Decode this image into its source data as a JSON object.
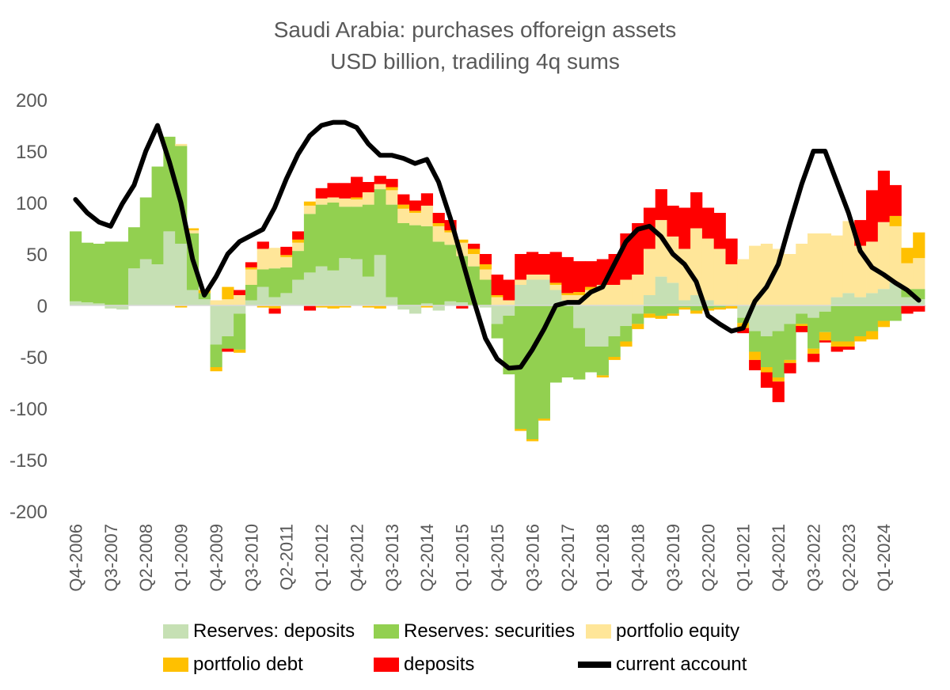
{
  "chart_data": {
    "type": "bar",
    "title": "Saudi Arabia: purchases offoreign assets",
    "subtitle": "USD billion, tradiling 4q sums",
    "ylim": [
      -200,
      200
    ],
    "yticks": [
      200,
      150,
      100,
      50,
      0,
      -50,
      -100,
      -150,
      -200
    ],
    "x_tick_labels": [
      "Q4-2006",
      "Q3-2007",
      "Q2-2008",
      "Q1-2009",
      "Q4-2009",
      "Q3-2010",
      "Q2-2011",
      "Q1-2012",
      "Q4-2012",
      "Q3-2013",
      "Q2-2014",
      "Q1-2015",
      "Q4-2015",
      "Q3-2016",
      "Q2-2017",
      "Q1-2018",
      "Q4-2018",
      "Q3-2019",
      "Q2-2020",
      "Q1-2021",
      "Q4-2021",
      "Q3-2022",
      "Q2-2023",
      "Q1-2024"
    ],
    "quarters": [
      "Q4-2006",
      "Q1-2007",
      "Q2-2007",
      "Q3-2007",
      "Q4-2007",
      "Q1-2008",
      "Q2-2008",
      "Q3-2008",
      "Q4-2008",
      "Q1-2009",
      "Q2-2009",
      "Q3-2009",
      "Q4-2009",
      "Q1-2010",
      "Q2-2010",
      "Q3-2010",
      "Q4-2010",
      "Q1-2011",
      "Q2-2011",
      "Q3-2011",
      "Q4-2011",
      "Q1-2012",
      "Q2-2012",
      "Q3-2012",
      "Q4-2012",
      "Q1-2013",
      "Q2-2013",
      "Q3-2013",
      "Q4-2013",
      "Q1-2014",
      "Q2-2014",
      "Q3-2014",
      "Q4-2014",
      "Q1-2015",
      "Q2-2015",
      "Q3-2015",
      "Q4-2015",
      "Q1-2016",
      "Q2-2016",
      "Q3-2016",
      "Q4-2016",
      "Q1-2017",
      "Q2-2017",
      "Q3-2017",
      "Q4-2017",
      "Q1-2018",
      "Q2-2018",
      "Q3-2018",
      "Q4-2018",
      "Q1-2019",
      "Q2-2019",
      "Q3-2019",
      "Q4-2019",
      "Q1-2020",
      "Q2-2020",
      "Q3-2020",
      "Q4-2020",
      "Q1-2021",
      "Q2-2021",
      "Q3-2021",
      "Q4-2021",
      "Q1-2022",
      "Q2-2022",
      "Q3-2022",
      "Q4-2022",
      "Q1-2023",
      "Q2-2023",
      "Q3-2023",
      "Q4-2023",
      "Q1-2024",
      "Q2-2024",
      "Q3-2024",
      "Q4-2024"
    ],
    "series": [
      {
        "name": "Reserves: deposits",
        "color": "#c6e0b4",
        "kind": "bar",
        "values": [
          4,
          3,
          2,
          -3,
          -4,
          36,
          45,
          40,
          72,
          60,
          15,
          6,
          -38,
          -30,
          -8,
          5,
          18,
          8,
          12,
          25,
          32,
          38,
          34,
          46,
          45,
          28,
          49,
          8,
          -4,
          -8,
          2,
          -5,
          4,
          3,
          0,
          -2,
          -18,
          -10,
          20,
          25,
          25,
          15,
          5,
          -22,
          -40,
          -40,
          -30,
          -20,
          -8,
          10,
          28,
          22,
          5,
          10,
          5,
          0,
          0,
          -12,
          -25,
          -30,
          -25,
          -18,
          -8,
          -12,
          -6,
          8,
          12,
          8,
          12,
          16,
          22,
          8,
          6
        ]
      },
      {
        "name": "Reserves: securities",
        "color": "#92d050",
        "kind": "bar",
        "values": [
          68,
          58,
          58,
          62,
          62,
          40,
          60,
          95,
          92,
          95,
          55,
          6,
          -22,
          -12,
          -35,
          15,
          17,
          28,
          25,
          28,
          57,
          60,
          66,
          50,
          51,
          70,
          64,
          90,
          80,
          78,
          75,
          62,
          55,
          45,
          38,
          25,
          -14,
          -57,
          -120,
          -130,
          -110,
          -75,
          -70,
          -50,
          -25,
          -28,
          -20,
          -15,
          -10,
          -8,
          -10,
          -8,
          -2,
          -5,
          -3,
          -2,
          0,
          -5,
          -20,
          -30,
          -45,
          -35,
          -10,
          -30,
          -20,
          -35,
          -35,
          -30,
          -25,
          -15,
          -15,
          8,
          10
        ]
      },
      {
        "name": "portfolio equity",
        "color": "#ffe699",
        "kind": "bar",
        "values": [
          0,
          0,
          0,
          0,
          0,
          0,
          0,
          0,
          0,
          2,
          3,
          0,
          5,
          6,
          10,
          15,
          20,
          20,
          10,
          8,
          8,
          6,
          5,
          8,
          7,
          12,
          5,
          14,
          14,
          12,
          20,
          15,
          12,
          13,
          12,
          10,
          8,
          5,
          5,
          5,
          5,
          5,
          5,
          10,
          15,
          20,
          20,
          25,
          30,
          45,
          55,
          45,
          50,
          65,
          60,
          55,
          40,
          45,
          58,
          60,
          55,
          50,
          60,
          70,
          70,
          60,
          70,
          50,
          50,
          65,
          55,
          25,
          30
        ]
      },
      {
        "name": "portfolio debt",
        "color": "#ffc000",
        "kind": "bar",
        "values": [
          0,
          0,
          0,
          0,
          0,
          0,
          0,
          0,
          0,
          -2,
          2,
          3,
          -4,
          12,
          -3,
          2,
          -2,
          -3,
          2,
          3,
          4,
          -2,
          -3,
          -2,
          2,
          -2,
          -3,
          3,
          4,
          2,
          -2,
          3,
          2,
          3,
          5,
          5,
          2,
          0,
          -2,
          -2,
          -2,
          2,
          2,
          3,
          3,
          -2,
          -3,
          -5,
          -5,
          -4,
          -3,
          -2,
          -2,
          -3,
          -2,
          -2,
          -3,
          -5,
          -8,
          -5,
          -4,
          -3,
          -2,
          -5,
          -8,
          -5,
          -5,
          -5,
          -8,
          -6,
          10,
          15,
          25
        ]
      },
      {
        "name": "deposits",
        "color": "#ff0000",
        "kind": "bar",
        "values": [
          0,
          0,
          0,
          0,
          0,
          0,
          0,
          0,
          0,
          0,
          0,
          0,
          0,
          -3,
          5,
          5,
          7,
          -5,
          8,
          8,
          -5,
          10,
          14,
          15,
          20,
          10,
          8,
          8,
          10,
          10,
          12,
          10,
          10,
          -3,
          5,
          10,
          20,
          20,
          25,
          22,
          20,
          30,
          35,
          30,
          25,
          25,
          30,
          45,
          50,
          40,
          30,
          30,
          40,
          35,
          30,
          35,
          25,
          -5,
          -10,
          -15,
          -20,
          -10,
          -6,
          -8,
          -2,
          -5,
          -3,
          25,
          50,
          50,
          30,
          -8,
          -6
        ]
      },
      {
        "name": "current account",
        "color": "#000000",
        "kind": "line",
        "values": [
          103,
          90,
          81,
          77,
          99,
          117,
          150,
          175,
          140,
          100,
          45,
          10,
          28,
          50,
          62,
          68,
          74,
          95,
          123,
          147,
          165,
          175,
          178,
          178,
          173,
          157,
          146,
          146,
          143,
          138,
          142,
          120,
          85,
          45,
          5,
          -32,
          -52,
          -61,
          -60,
          -43,
          -23,
          0,
          3,
          3,
          13,
          18,
          40,
          62,
          74,
          77,
          67,
          50,
          40,
          23,
          -10,
          -18,
          -25,
          -22,
          4,
          18,
          40,
          80,
          118,
          150,
          150,
          120,
          90,
          53,
          37,
          30,
          22,
          15,
          5
        ]
      }
    ]
  }
}
